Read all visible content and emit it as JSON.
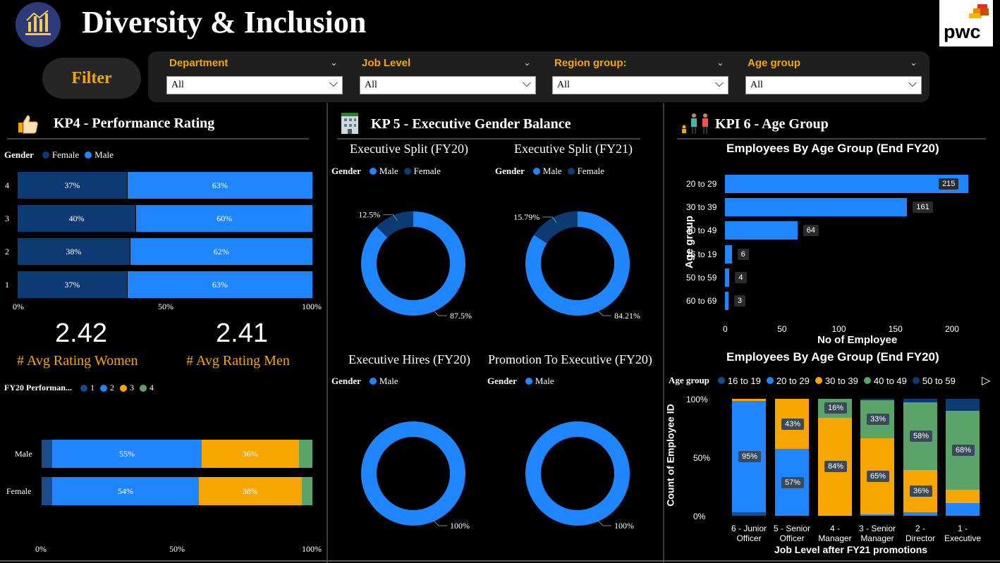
{
  "header": {
    "title": "Diversity & Inclusion",
    "brand_logo": "pwc",
    "icon": "bar-chart-building-icon"
  },
  "filter": {
    "label": "Filter",
    "slicers": [
      {
        "title": "Department",
        "value": "All"
      },
      {
        "title": "Job Level",
        "value": "All"
      },
      {
        "title": "Region group:",
        "value": "All"
      },
      {
        "title": "Age group",
        "value": "All"
      }
    ]
  },
  "colors": {
    "male": "#1f86ff",
    "female": "#0e3a73",
    "accent": "#f7a600",
    "green": "#5aa469",
    "dark_blue": "#1c4a8a"
  },
  "kpi4": {
    "title": "KP4 - Performance Rating",
    "icon": "thumbs-up-icon",
    "legend_title": "Gender",
    "legend": [
      "Female",
      "Male"
    ],
    "rows": [
      {
        "label": "4",
        "female": 37,
        "male": 63,
        "female_text": "37%",
        "male_text": "63%"
      },
      {
        "label": "3",
        "female": 40,
        "male": 60,
        "female_text": "40%",
        "male_text": "60%"
      },
      {
        "label": "2",
        "female": 38,
        "male": 62,
        "female_text": "38%",
        "male_text": "62%"
      },
      {
        "label": "1",
        "female": 37,
        "male": 63,
        "female_text": "37%",
        "male_text": "63%"
      }
    ],
    "ticks": [
      "0%",
      "50%",
      "100%"
    ],
    "avg_women": "2.42",
    "avg_men": "2.41",
    "avg_women_label": "# Avg Rating Women",
    "avg_men_label": "# Avg Rating Men",
    "fy20_legend_title": "FY20 Performan...",
    "fy20_legend": [
      "1",
      "2",
      "3",
      "4"
    ],
    "fy20_rows": [
      {
        "label": "Male",
        "v1": 4,
        "v2": 55,
        "v3": 36,
        "v4": 5,
        "t2": "55%",
        "t3": "36%"
      },
      {
        "label": "Female",
        "v1": 4,
        "v2": 54,
        "v3": 38,
        "v4": 4,
        "t2": "54%",
        "t3": "38%"
      }
    ],
    "fy20_ticks": [
      "0%",
      "50%",
      "100%"
    ]
  },
  "kpi5": {
    "title": "KP 5 - Executive Gender Balance",
    "icon": "office-building-icon",
    "donuts": [
      {
        "title": "Executive Split (FY20)",
        "legend": [
          "Male",
          "Female"
        ],
        "male": 87.5,
        "female": 12.5,
        "male_text": "87.5%",
        "female_text": "12.5%"
      },
      {
        "title": "Executive Split (FY21)",
        "legend": [
          "Male",
          "Female"
        ],
        "male": 84.21,
        "female": 15.79,
        "male_text": "84.21%",
        "female_text": "15.79%"
      },
      {
        "title": "Executive Hires (FY20)",
        "legend": [
          "Male"
        ],
        "male": 100,
        "female": 0,
        "male_text": "100%",
        "female_text": ""
      },
      {
        "title": "Promotion To Executive (FY20)",
        "legend": [
          "Male"
        ],
        "male": 100,
        "female": 0,
        "male_text": "100%",
        "female_text": ""
      }
    ],
    "legend_title": "Gender"
  },
  "kpi6": {
    "title": "KPI 6 - Age Group",
    "icon": "people-icon",
    "chart1": {
      "title": "Employees By Age Group (End FY20)",
      "ylabel": "Age group",
      "xlabel": "No of Employee",
      "categories": [
        "20 to 29",
        "30 to 39",
        "40 to 49",
        "16 to 19",
        "50 to 59",
        "60 to 69"
      ],
      "values": [
        215,
        161,
        64,
        6,
        4,
        3
      ],
      "ticks": [
        "0",
        "50",
        "100",
        "150",
        "200"
      ]
    },
    "chart2": {
      "title": "Employees By Age Group (End FY20)",
      "legend_title": "Age group",
      "legend": [
        "16 to 19",
        "20 to 29",
        "30 to 39",
        "40 to 49",
        "50 to 59"
      ],
      "ylabel": "Count of Employee ID",
      "xlabel": "Job Level after FY21 promotions",
      "yticks": [
        "100%",
        "50%",
        "0%"
      ],
      "columns": [
        {
          "line1": "6 - Junior",
          "line2": "Officer",
          "a16": 3,
          "a20": 95,
          "a30": 2,
          "a40": 0,
          "a50": 0,
          "labels": {
            "a20": "95%"
          }
        },
        {
          "line1": "5 - Senior",
          "line2": "Officer",
          "a16": 0,
          "a20": 57,
          "a30": 43,
          "a40": 0,
          "a50": 0,
          "labels": {
            "a20": "57%",
            "a30": "43%"
          }
        },
        {
          "line1": "4 -",
          "line2": "Manager",
          "a16": 0,
          "a20": 0,
          "a30": 84,
          "a40": 16,
          "a50": 0,
          "labels": {
            "a30": "84%",
            "a40": "16%"
          }
        },
        {
          "line1": "3 - Senior",
          "line2": "Manager",
          "a16": 0,
          "a20": 1,
          "a30": 65,
          "a40": 33,
          "a50": 1,
          "labels": {
            "a30": "65%",
            "a40": "33%"
          }
        },
        {
          "line1": "2 -",
          "line2": "Director",
          "a16": 0,
          "a20": 3,
          "a30": 36,
          "a40": 58,
          "a50": 3,
          "labels": {
            "a30": "36%",
            "a40": "58%"
          }
        },
        {
          "line1": "1 -",
          "line2": "Executive",
          "a16": 0,
          "a20": 11,
          "a30": 11,
          "a40": 68,
          "a50": 10,
          "labels": {
            "a40": "68%"
          }
        }
      ]
    }
  }
}
